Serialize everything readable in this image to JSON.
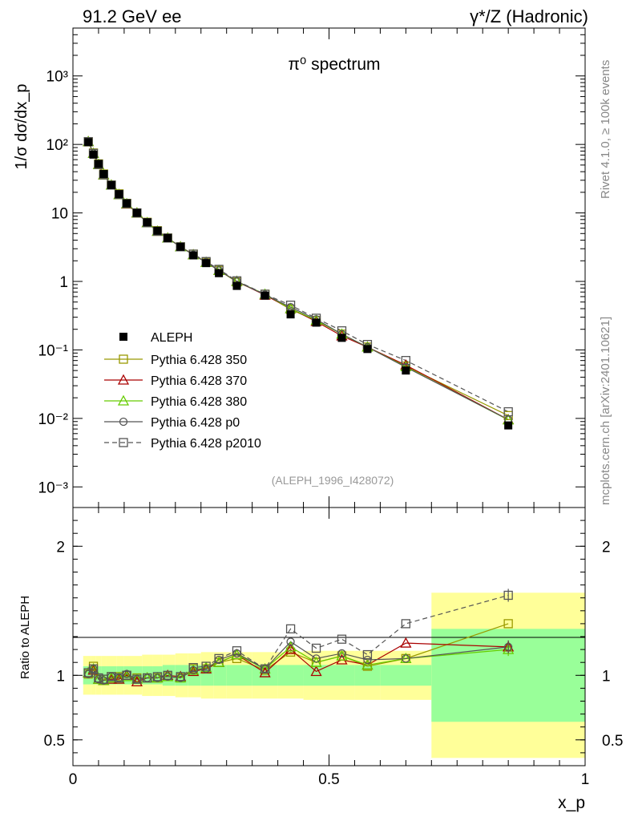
{
  "header": {
    "left": "91.2 GeV ee",
    "right": "γ*/Z (Hadronic)"
  },
  "side_labels": {
    "rivet": "Rivet 4.1.0, ≥ 100k events",
    "mcplots": "mcplots.cern.ch [arXiv:2401.10621]"
  },
  "colors": {
    "band_inner": "#99ff99",
    "band_outer": "#ffff99"
  },
  "chart_data": [
    {
      "type": "line",
      "title": "π⁰ spectrum",
      "ylabel": "1/σ dσ/dx_p",
      "yscale": "log",
      "ylim": [
        0.0005,
        5000
      ],
      "xlim": [
        0,
        1
      ],
      "analysis_tag": "(ALEPH_1996_I428072)",
      "ytick_labels": [
        "10³",
        "10²",
        "10",
        "1",
        "10⁻¹",
        "10⁻²",
        "10⁻³"
      ],
      "ytick_values": [
        1000,
        100,
        10,
        1,
        0.1,
        0.01,
        0.001
      ],
      "x": [
        0.03,
        0.04,
        0.05,
        0.06,
        0.075,
        0.09,
        0.105,
        0.125,
        0.145,
        0.165,
        0.185,
        0.21,
        0.235,
        0.26,
        0.285,
        0.32,
        0.375,
        0.425,
        0.475,
        0.525,
        0.575,
        0.65,
        0.85
      ],
      "data": {
        "name": "ALEPH",
        "values": [
          108,
          71,
          52,
          37,
          25.5,
          18.8,
          13.8,
          10.0,
          7.3,
          5.5,
          4.3,
          3.2,
          2.4,
          1.85,
          1.32,
          0.86,
          0.62,
          0.33,
          0.25,
          0.15,
          0.103,
          0.05,
          0.0079
        ]
      },
      "series": [
        {
          "name": "Pythia 6.428 350",
          "color": "#999900",
          "marker": "square",
          "dash": "none",
          "values": [
            109,
            75,
            52,
            37,
            25.5,
            19,
            13.8,
            10.0,
            7.3,
            5.5,
            4.3,
            3.2,
            2.5,
            1.9,
            1.45,
            0.98,
            0.65,
            0.39,
            0.27,
            0.17,
            0.11,
            0.058,
            0.011
          ]
        },
        {
          "name": "Pythia 6.428 370",
          "color": "#aa0000",
          "marker": "triangle",
          "dash": "none",
          "values": [
            110,
            74,
            51,
            36,
            25.5,
            18.5,
            13.5,
            10.0,
            7.2,
            5.4,
            4.3,
            3.2,
            2.45,
            1.9,
            1.45,
            1.0,
            0.63,
            0.4,
            0.26,
            0.16,
            0.11,
            0.06,
            0.0096
          ]
        },
        {
          "name": "Pythia 6.428 380",
          "color": "#66cc00",
          "marker": "triangle",
          "dash": "none",
          "values": [
            110,
            74,
            51,
            36,
            25.5,
            18.5,
            13.6,
            10.0,
            7.2,
            5.4,
            4.3,
            3.2,
            2.45,
            1.9,
            1.45,
            1.0,
            0.65,
            0.4,
            0.27,
            0.17,
            0.11,
            0.057,
            0.0095
          ]
        },
        {
          "name": "Pythia 6.428 p0",
          "color": "#555555",
          "marker": "circle",
          "dash": "none",
          "values": [
            110,
            74,
            51,
            36,
            25.5,
            18.6,
            13.8,
            10.0,
            7.2,
            5.4,
            4.3,
            3.2,
            2.45,
            1.9,
            1.45,
            1.0,
            0.64,
            0.42,
            0.28,
            0.17,
            0.11,
            0.056,
            0.0096
          ]
        },
        {
          "name": "Pythia 6.428 p2010",
          "color": "#555555",
          "marker": "square-open",
          "dash": "6,4",
          "values": [
            110,
            74,
            51,
            36,
            25.5,
            18.6,
            13.7,
            10.0,
            7.2,
            5.4,
            4.3,
            3.2,
            2.5,
            1.95,
            1.5,
            1.02,
            0.65,
            0.45,
            0.29,
            0.19,
            0.12,
            0.07,
            0.0125
          ]
        }
      ]
    },
    {
      "type": "line",
      "ylabel": "Ratio to ALEPH",
      "xlabel": "x_p",
      "ylim": [
        0.3,
        2.3
      ],
      "xlim": [
        0,
        1
      ],
      "ytick_labels": [
        "2",
        "1",
        "0.5"
      ],
      "ytick_values": [
        2,
        1,
        0.5
      ],
      "xtick_labels": [
        "0",
        "0.5",
        "1"
      ],
      "xtick_values": [
        0,
        0.5,
        1
      ],
      "bands": {
        "edges": [
          0.02,
          0.035,
          0.045,
          0.055,
          0.065,
          0.085,
          0.1,
          0.115,
          0.135,
          0.155,
          0.175,
          0.2,
          0.225,
          0.25,
          0.275,
          0.3,
          0.35,
          0.4,
          0.45,
          0.5,
          0.55,
          0.6,
          0.7,
          1.0
        ],
        "inner_half": [
          0.07,
          0.07,
          0.07,
          0.07,
          0.07,
          0.07,
          0.07,
          0.07,
          0.07,
          0.07,
          0.08,
          0.08,
          0.08,
          0.08,
          0.08,
          0.08,
          0.08,
          0.08,
          0.08,
          0.08,
          0.08,
          0.08,
          0.36
        ],
        "outer_half": [
          0.15,
          0.15,
          0.15,
          0.15,
          0.15,
          0.15,
          0.15,
          0.15,
          0.16,
          0.16,
          0.16,
          0.17,
          0.17,
          0.18,
          0.18,
          0.18,
          0.18,
          0.18,
          0.19,
          0.19,
          0.19,
          0.19,
          0.64
        ]
      },
      "series": [
        {
          "name": "Pythia 6.428 350",
          "values": [
            1.01,
            1.07,
            0.97,
            0.97,
            0.99,
            0.99,
            1.0,
            0.98,
            0.98,
            0.98,
            0.99,
            0.98,
            1.05,
            1.05,
            1.1,
            1.13,
            1.04,
            1.18,
            1.1,
            1.15,
            1.07,
            1.13,
            1.4
          ]
        },
        {
          "name": "Pythia 6.428 370",
          "values": [
            1.02,
            1.04,
            0.97,
            0.96,
            0.97,
            0.97,
            1.0,
            0.95,
            0.98,
            0.98,
            1.0,
            0.99,
            1.03,
            1.05,
            1.1,
            1.16,
            1.02,
            1.2,
            1.03,
            1.12,
            1.08,
            1.25,
            1.22
          ]
        },
        {
          "name": "Pythia 6.428 380",
          "values": [
            1.02,
            1.05,
            0.97,
            0.96,
            0.98,
            0.98,
            0.99,
            0.97,
            0.98,
            0.98,
            0.99,
            0.98,
            1.04,
            1.06,
            1.1,
            1.16,
            1.05,
            1.22,
            1.1,
            1.15,
            1.08,
            1.13,
            1.2
          ]
        },
        {
          "name": "Pythia 6.428 p0",
          "values": [
            1.01,
            1.05,
            0.97,
            0.96,
            0.99,
            0.98,
            1.01,
            0.97,
            0.98,
            0.98,
            0.99,
            0.98,
            1.04,
            1.05,
            1.12,
            1.17,
            1.05,
            1.26,
            1.13,
            1.17,
            1.12,
            1.13,
            1.22
          ]
        },
        {
          "name": "Pythia 6.428 p2010",
          "values": [
            1.02,
            1.05,
            0.98,
            0.97,
            0.99,
            0.98,
            1.0,
            0.97,
            0.98,
            0.99,
            1.0,
            0.99,
            1.06,
            1.07,
            1.13,
            1.19,
            1.05,
            1.36,
            1.21,
            1.28,
            1.16,
            1.4,
            1.62
          ]
        }
      ]
    }
  ]
}
